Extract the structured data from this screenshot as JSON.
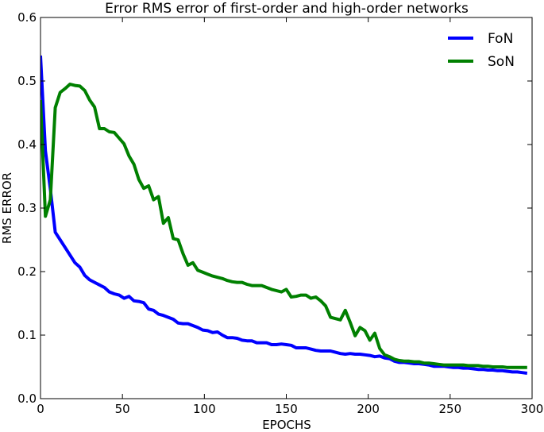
{
  "chart_data": {
    "type": "line",
    "title": "Error RMS error of first-order and high-order networks",
    "xlabel": "EPOCHS",
    "ylabel": "RMS ERROR",
    "xlim": [
      0,
      300
    ],
    "ylim": [
      0,
      0.6
    ],
    "xticks": [
      0,
      50,
      100,
      150,
      200,
      250,
      300
    ],
    "yticks": [
      0.0,
      0.1,
      0.2,
      0.3,
      0.4,
      0.5,
      0.6
    ],
    "grid": false,
    "legend_position": "top-right",
    "series": [
      {
        "name": "FoN",
        "color": "#0000ff",
        "x": [
          0,
          3,
          6,
          9,
          12,
          15,
          18,
          21,
          24,
          27,
          30,
          33,
          36,
          39,
          42,
          45,
          48,
          51,
          54,
          57,
          60,
          63,
          66,
          69,
          72,
          75,
          78,
          81,
          84,
          87,
          90,
          93,
          96,
          99,
          102,
          105,
          108,
          111,
          114,
          117,
          120,
          123,
          126,
          129,
          132,
          135,
          138,
          141,
          144,
          147,
          150,
          153,
          156,
          159,
          162,
          165,
          168,
          171,
          174,
          177,
          180,
          183,
          186,
          189,
          192,
          195,
          198,
          201,
          204,
          207,
          210,
          213,
          216,
          219,
          222,
          225,
          228,
          231,
          234,
          237,
          240,
          243,
          246,
          249,
          252,
          255,
          258,
          261,
          264,
          267,
          270,
          273,
          276,
          279,
          282,
          285,
          288,
          291,
          294,
          297
        ],
        "values": [
          0.54,
          0.39,
          0.33,
          0.262,
          0.25,
          0.238,
          0.226,
          0.214,
          0.207,
          0.194,
          0.187,
          0.183,
          0.179,
          0.175,
          0.168,
          0.165,
          0.163,
          0.158,
          0.161,
          0.154,
          0.153,
          0.151,
          0.141,
          0.139,
          0.133,
          0.131,
          0.128,
          0.125,
          0.119,
          0.118,
          0.118,
          0.115,
          0.112,
          0.108,
          0.107,
          0.104,
          0.105,
          0.1,
          0.096,
          0.096,
          0.095,
          0.092,
          0.091,
          0.091,
          0.088,
          0.088,
          0.088,
          0.085,
          0.085,
          0.086,
          0.085,
          0.084,
          0.08,
          0.08,
          0.08,
          0.078,
          0.076,
          0.075,
          0.075,
          0.075,
          0.073,
          0.071,
          0.07,
          0.071,
          0.07,
          0.07,
          0.069,
          0.068,
          0.066,
          0.067,
          0.064,
          0.063,
          0.059,
          0.057,
          0.057,
          0.056,
          0.055,
          0.055,
          0.054,
          0.053,
          0.051,
          0.051,
          0.051,
          0.05,
          0.049,
          0.049,
          0.048,
          0.048,
          0.047,
          0.046,
          0.046,
          0.045,
          0.045,
          0.044,
          0.044,
          0.043,
          0.042,
          0.042,
          0.041,
          0.04
        ]
      },
      {
        "name": "SoN",
        "color": "#008000",
        "x": [
          0,
          3,
          6,
          9,
          12,
          15,
          18,
          21,
          24,
          27,
          30,
          33,
          36,
          39,
          42,
          45,
          48,
          51,
          54,
          57,
          60,
          63,
          66,
          69,
          72,
          75,
          78,
          81,
          84,
          87,
          90,
          93,
          96,
          99,
          102,
          105,
          108,
          111,
          114,
          117,
          120,
          123,
          126,
          129,
          132,
          135,
          138,
          141,
          144,
          147,
          150,
          153,
          156,
          159,
          162,
          165,
          168,
          171,
          174,
          177,
          180,
          183,
          186,
          189,
          192,
          195,
          198,
          201,
          204,
          207,
          210,
          213,
          216,
          219,
          222,
          225,
          228,
          231,
          234,
          237,
          240,
          243,
          246,
          249,
          252,
          255,
          258,
          261,
          264,
          267,
          270,
          273,
          276,
          279,
          282,
          285,
          288,
          291,
          294,
          297
        ],
        "values": [
          0.47,
          0.287,
          0.313,
          0.458,
          0.482,
          0.488,
          0.495,
          0.493,
          0.492,
          0.485,
          0.47,
          0.459,
          0.425,
          0.425,
          0.42,
          0.419,
          0.41,
          0.401,
          0.382,
          0.369,
          0.345,
          0.331,
          0.335,
          0.313,
          0.318,
          0.276,
          0.285,
          0.252,
          0.25,
          0.228,
          0.21,
          0.214,
          0.202,
          0.199,
          0.196,
          0.193,
          0.191,
          0.189,
          0.186,
          0.184,
          0.183,
          0.183,
          0.18,
          0.178,
          0.178,
          0.178,
          0.175,
          0.172,
          0.17,
          0.168,
          0.172,
          0.16,
          0.161,
          0.163,
          0.163,
          0.158,
          0.16,
          0.154,
          0.146,
          0.128,
          0.126,
          0.124,
          0.139,
          0.12,
          0.099,
          0.112,
          0.107,
          0.092,
          0.103,
          0.079,
          0.069,
          0.066,
          0.062,
          0.06,
          0.059,
          0.059,
          0.058,
          0.058,
          0.056,
          0.056,
          0.055,
          0.054,
          0.053,
          0.053,
          0.053,
          0.053,
          0.053,
          0.052,
          0.052,
          0.052,
          0.051,
          0.051,
          0.05,
          0.05,
          0.05,
          0.049,
          0.049,
          0.049,
          0.049,
          0.049
        ]
      }
    ]
  }
}
